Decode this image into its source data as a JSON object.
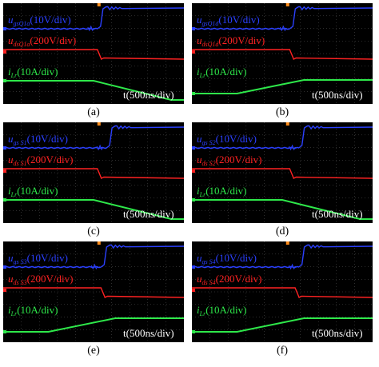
{
  "chart_data": [
    {
      "type": "line",
      "panel_label": "(a)",
      "series": [
        {
          "name": "u_gsQ1a (10V/div)",
          "channel": "ugs",
          "switch_at": 0.53
        },
        {
          "name": "u_dsQ1a (200V/div)",
          "channel": "uds",
          "switch_at": 0.53
        },
        {
          "name": "i_Lr (10A/div)",
          "channel": "ilr",
          "shape": "fall"
        }
      ],
      "time_label": "t(500ns/div)",
      "labels": {
        "ugs": {
          "sym": "u",
          "sub": "gsQ1a",
          "scale": "(10V/div)"
        },
        "uds": {
          "sym": "u",
          "sub": "dsQ1a",
          "scale": "(200V/div)"
        },
        "ilr": {
          "sym": "i",
          "sub": "Lr",
          "scale": "(10A/div)"
        }
      }
    },
    {
      "type": "line",
      "panel_label": "(b)",
      "series": [
        {
          "name": "u_gsQ1d (10V/div)",
          "channel": "ugs",
          "switch_at": 0.55
        },
        {
          "name": "u_dsQ1d (200V/div)",
          "channel": "uds",
          "switch_at": 0.55
        },
        {
          "name": "i_Lr (10A/div)",
          "channel": "ilr",
          "shape": "rise"
        }
      ],
      "time_label": "t(500ns/div)",
      "labels": {
        "ugs": {
          "sym": "u",
          "sub": "gsQ1d",
          "scale": "(10V/div)"
        },
        "uds": {
          "sym": "u",
          "sub": "dsQ1d",
          "scale": "(200V/div)"
        },
        "ilr": {
          "sym": "i",
          "sub": "Lr",
          "scale": "(10A/div)"
        }
      }
    },
    {
      "type": "line",
      "panel_label": "(c)",
      "series": [
        {
          "name": "u_gsS1 (10V/div)",
          "channel": "ugs",
          "switch_at": 0.58
        },
        {
          "name": "u_dsS1 (200V/div)",
          "channel": "uds",
          "switch_at": 0.53
        },
        {
          "name": "i_Lr (10A/div)",
          "channel": "ilr",
          "shape": "fall"
        }
      ],
      "time_label": "t(500ns/div)",
      "labels": {
        "ugs": {
          "sym": "u",
          "sub": "gs S1",
          "scale": "(10V/div)"
        },
        "uds": {
          "sym": "u",
          "sub": "ds S1",
          "scale": "(200V/div)"
        },
        "ilr": {
          "sym": "i",
          "sub": "Lr",
          "scale": "(10A/div)"
        }
      }
    },
    {
      "type": "line",
      "panel_label": "(d)",
      "series": [
        {
          "name": "u_gsS2 (10V/div)",
          "channel": "ugs",
          "switch_at": 0.6
        },
        {
          "name": "u_dsS2 (200V/div)",
          "channel": "uds",
          "switch_at": 0.55
        },
        {
          "name": "i_Lr (10A/div)",
          "channel": "ilr",
          "shape": "fall"
        }
      ],
      "time_label": "t(500ns/div)",
      "labels": {
        "ugs": {
          "sym": "u",
          "sub": "gs S2",
          "scale": "(10V/div)"
        },
        "uds": {
          "sym": "u",
          "sub": "ds S2",
          "scale": "(200V/div)"
        },
        "ilr": {
          "sym": "i",
          "sub": "Lr",
          "scale": "(10A/div)"
        }
      }
    },
    {
      "type": "line",
      "panel_label": "(e)",
      "series": [
        {
          "name": "u_gsS3 (10V/div)",
          "channel": "ugs",
          "switch_at": 0.55
        },
        {
          "name": "u_dsS3 (200V/div)",
          "channel": "uds",
          "switch_at": 0.55
        },
        {
          "name": "i_Lr (10A/div)",
          "channel": "ilr",
          "shape": "rise"
        }
      ],
      "time_label": "t(500ns/div)",
      "labels": {
        "ugs": {
          "sym": "u",
          "sub": "gs S3",
          "scale": "(10V/div)"
        },
        "uds": {
          "sym": "u",
          "sub": "ds S3",
          "scale": "(200V/div)"
        },
        "ilr": {
          "sym": "i",
          "sub": "Lr",
          "scale": "(10A/div)"
        }
      }
    },
    {
      "type": "line",
      "panel_label": "(f)",
      "series": [
        {
          "name": "u_gsS4 (10V/div)",
          "channel": "ugs",
          "switch_at": 0.6
        },
        {
          "name": "u_dsS4 (200V/div)",
          "channel": "uds",
          "switch_at": 0.58
        },
        {
          "name": "i_Lr (10A/div)",
          "channel": "ilr",
          "shape": "rise"
        }
      ],
      "time_label": "t(500ns/div)",
      "labels": {
        "ugs": {
          "sym": "u",
          "sub": "gs S4",
          "scale": "(10V/div)"
        },
        "uds": {
          "sym": "u",
          "sub": "ds S4",
          "scale": "(200V/div)"
        },
        "ilr": {
          "sym": "i",
          "sub": "Lr",
          "scale": "(10A/div)"
        }
      }
    }
  ],
  "colors": {
    "ugs": "#2b40ff",
    "uds": "#ff2222",
    "ilr": "#2ee84a",
    "background": "#000000",
    "grid": "#5a5a5a"
  }
}
